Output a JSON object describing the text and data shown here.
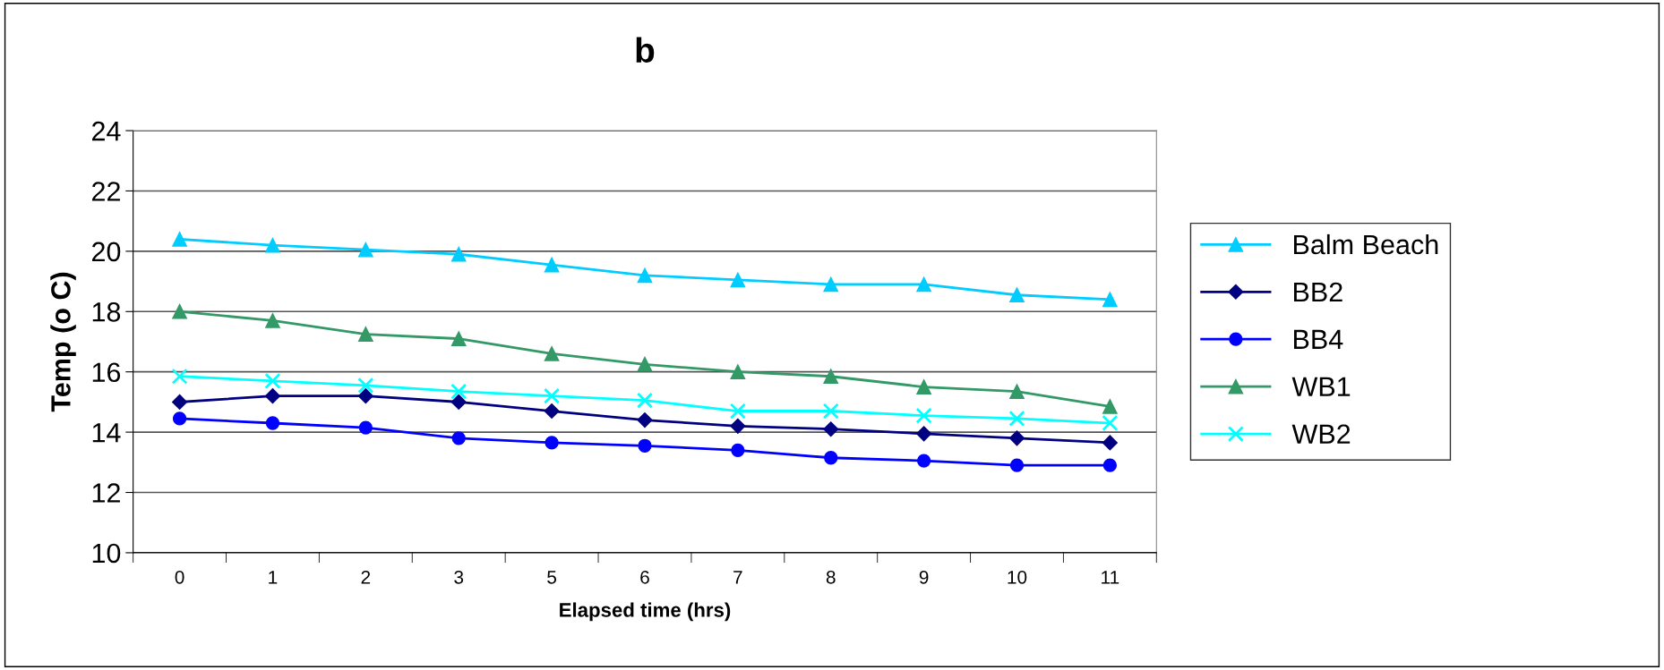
{
  "chart_data": {
    "type": "line",
    "title": "b",
    "xlabel": "Elapsed time (hrs)",
    "ylabel": "Temp (o C)",
    "categories": [
      "0",
      "1",
      "2",
      "3",
      "5",
      "6",
      "7",
      "8",
      "9",
      "10",
      "11"
    ],
    "series": [
      {
        "name": "Balm Beach",
        "color": "#00ccff",
        "marker": "triangle",
        "values": [
          20.4,
          20.2,
          20.05,
          19.9,
          19.55,
          19.2,
          19.05,
          18.9,
          18.9,
          18.55,
          18.4
        ]
      },
      {
        "name": "BB2",
        "color": "#000080",
        "marker": "diamond",
        "values": [
          15.0,
          15.2,
          15.2,
          15.0,
          14.7,
          14.4,
          14.2,
          14.1,
          13.95,
          13.8,
          13.65
        ]
      },
      {
        "name": "BB4",
        "color": "#0000ff",
        "marker": "circle",
        "values": [
          14.45,
          14.3,
          14.15,
          13.8,
          13.65,
          13.55,
          13.4,
          13.15,
          13.05,
          12.9,
          12.9
        ]
      },
      {
        "name": "WB1",
        "color": "#339966",
        "marker": "triangle",
        "values": [
          18.0,
          17.7,
          17.25,
          17.1,
          16.6,
          16.25,
          16.0,
          15.85,
          15.5,
          15.35,
          14.85
        ]
      },
      {
        "name": "WB2",
        "color": "#00ffff",
        "marker": "cross",
        "values": [
          15.85,
          15.7,
          15.55,
          15.35,
          15.2,
          15.05,
          14.7,
          14.7,
          14.55,
          14.45,
          14.3
        ]
      }
    ],
    "ylim": [
      10,
      24
    ],
    "yticks": [
      10,
      12,
      14,
      16,
      18,
      20,
      22,
      24
    ],
    "grid": "y",
    "legend": "right",
    "line_style": "solid"
  }
}
